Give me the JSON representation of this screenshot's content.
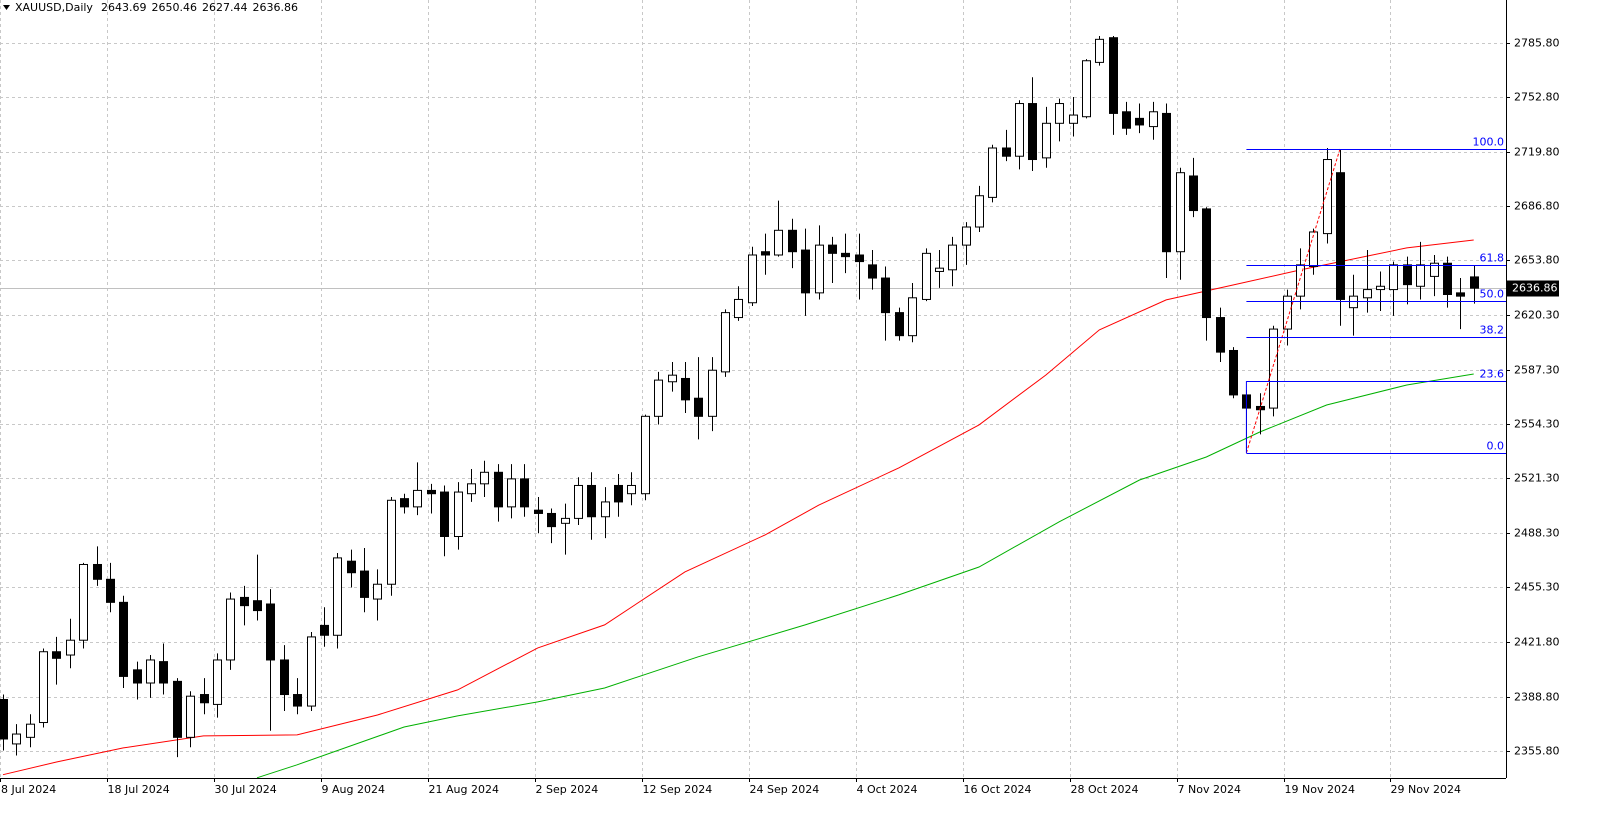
{
  "chart_data": {
    "type": "candlestick",
    "title": "XAUUSD,Daily",
    "categories": [
      "8 Jul 2024",
      null,
      null,
      null,
      null,
      null,
      null,
      null,
      "18 Jul 2024",
      null,
      null,
      null,
      null,
      null,
      null,
      null,
      "30 Jul 2024",
      null,
      null,
      null,
      null,
      null,
      null,
      null,
      "9 Aug 2024",
      null,
      null,
      null,
      null,
      null,
      null,
      null,
      "21 Aug 2024",
      null,
      null,
      null,
      null,
      null,
      null,
      null,
      "2 Sep 2024",
      null,
      null,
      null,
      null,
      null,
      null,
      null,
      "12 Sep 2024",
      null,
      null,
      null,
      null,
      null,
      null,
      null,
      "24 Sep 2024",
      null,
      null,
      null,
      null,
      null,
      null,
      null,
      "4 Oct 2024",
      null,
      null,
      null,
      null,
      null,
      null,
      null,
      "16 Oct 2024",
      null,
      null,
      null,
      null,
      null,
      null,
      null,
      "28 Oct 2024",
      null,
      null,
      null,
      null,
      null,
      null,
      null,
      "7 Nov 2024",
      null,
      null,
      null,
      null,
      null,
      null,
      null,
      "19 Nov 2024",
      null,
      null,
      null,
      null,
      null,
      null,
      null,
      "29 Nov 2024",
      null,
      null,
      null,
      null,
      null,
      null
    ],
    "open": [
      2387,
      2360,
      2364,
      2373,
      2416,
      2414,
      2423,
      2469,
      2460,
      2446,
      2405,
      2397,
      2410,
      2398,
      2364,
      2390,
      2384,
      2411,
      2449,
      2447,
      2445,
      2411,
      2390,
      2383,
      2432,
      2426,
      2471,
      2465,
      2448,
      2457,
      2509,
      2504,
      2514,
      2513,
      2486,
      2512,
      2518,
      2525,
      2504,
      2521,
      2502,
      2500,
      2494,
      2497,
      2517,
      2498,
      2517,
      2512,
      2512,
      2559,
      2580,
      2582,
      2570,
      2559,
      2586,
      2619,
      2628,
      2659,
      2657,
      2672,
      2660,
      2634,
      2663,
      2658,
      2657,
      2651,
      2643,
      2622,
      2608,
      2630,
      2647,
      2648,
      2663,
      2674,
      2692,
      2722,
      2717,
      2749,
      2716,
      2737,
      2737,
      2741,
      2774,
      2789,
      2744,
      2740,
      2735,
      2743,
      2659,
      2705,
      2685,
      2619,
      2599,
      2572,
      2565,
      2564,
      2612,
      2632,
      2650,
      2670,
      2707,
      2625,
      2631,
      2636,
      2636,
      2651,
      2638,
      2644,
      2652,
      2634,
      2643.69
    ],
    "high": [
      2390,
      2372,
      2378,
      2418,
      2425,
      2436,
      2470,
      2480,
      2470,
      2450,
      2410,
      2414,
      2421,
      2400,
      2392,
      2400,
      2415,
      2452,
      2456,
      2475,
      2454,
      2420,
      2400,
      2428,
      2443,
      2476,
      2478,
      2479,
      2466,
      2510,
      2512,
      2531,
      2518,
      2517,
      2519,
      2527,
      2532,
      2530,
      2530,
      2530,
      2510,
      2503,
      2506,
      2522,
      2525,
      2516,
      2524,
      2525,
      2560,
      2586,
      2592,
      2592,
      2595,
      2595,
      2624,
      2638,
      2662,
      2670,
      2690,
      2679,
      2673,
      2675,
      2668,
      2670,
      2670,
      2660,
      2650,
      2625,
      2640,
      2661,
      2660,
      2668,
      2677,
      2699,
      2724,
      2733,
      2751,
      2765,
      2747,
      2752,
      2753,
      2776,
      2790,
      2790,
      2750,
      2749,
      2750,
      2749,
      2710,
      2716,
      2686,
      2625,
      2601,
      2575,
      2573,
      2614,
      2636,
      2661,
      2673,
      2722,
      2721,
      2645,
      2660,
      2647,
      2653,
      2656,
      2665,
      2657,
      2656,
      2643,
      2650.46
    ],
    "low": [
      2356,
      2353,
      2358,
      2370,
      2396,
      2406,
      2418,
      2456,
      2440,
      2394,
      2387,
      2388,
      2390,
      2352,
      2358,
      2378,
      2376,
      2405,
      2432,
      2435,
      2368,
      2380,
      2378,
      2380,
      2419,
      2418,
      2455,
      2440,
      2435,
      2450,
      2500,
      2499,
      2500,
      2474,
      2478,
      2507,
      2510,
      2495,
      2497,
      2498,
      2488,
      2482,
      2475,
      2493,
      2484,
      2485,
      2498,
      2505,
      2508,
      2554,
      2574,
      2561,
      2545,
      2550,
      2583,
      2617,
      2626,
      2645,
      2656,
      2649,
      2620,
      2630,
      2640,
      2646,
      2630,
      2636,
      2605,
      2605,
      2604,
      2629,
      2637,
      2638,
      2651,
      2671,
      2689,
      2714,
      2709,
      2708,
      2710,
      2726,
      2729,
      2740,
      2772,
      2730,
      2730,
      2731,
      2727,
      2643,
      2642,
      2680,
      2605,
      2592,
      2570,
      2537,
      2548,
      2559,
      2602,
      2624,
      2645,
      2664,
      2614,
      2608,
      2622,
      2623,
      2620,
      2627,
      2630,
      2632,
      2625,
      2612,
      2627.44
    ],
    "close": [
      2363,
      2366,
      2372,
      2416,
      2412,
      2423,
      2469,
      2460,
      2446,
      2401,
      2397,
      2411,
      2397,
      2364,
      2389,
      2385,
      2411,
      2448,
      2444,
      2441,
      2411,
      2390,
      2383,
      2425,
      2426,
      2473,
      2464,
      2449,
      2457,
      2508,
      2504,
      2514,
      2512,
      2486,
      2513,
      2518,
      2525,
      2504,
      2521,
      2504,
      2500,
      2492,
      2497,
      2517,
      2498,
      2507,
      2507,
      2517,
      2559,
      2581,
      2584,
      2569,
      2559,
      2587,
      2622,
      2630,
      2657,
      2657,
      2672,
      2659,
      2634,
      2663,
      2658,
      2656,
      2653,
      2643,
      2622,
      2608,
      2631,
      2658,
      2649,
      2663,
      2674,
      2693,
      2722,
      2717,
      2749,
      2715,
      2737,
      2749,
      2742,
      2775,
      2788,
      2743,
      2734,
      2736,
      2744,
      2659,
      2707,
      2684,
      2619,
      2598,
      2572,
      2564,
      2563,
      2612,
      2632,
      2651,
      2671,
      2715,
      2630,
      2632,
      2636,
      2638,
      2651,
      2639,
      2651,
      2652,
      2633,
      2632,
      2636.86
    ],
    "up_color": "#ffffff",
    "down_color": "#000000",
    "moving_averages": [
      {
        "color": "#ff0000",
        "x": [
          0,
          4,
          9,
          15,
          22,
          28,
          34,
          40,
          45,
          51,
          57,
          61,
          67,
          73,
          78,
          82,
          87,
          92,
          97,
          105,
          110
        ],
        "values": [
          2341.3,
          2349,
          2357.6,
          2364.9,
          2365.5,
          2377.6,
          2392.8,
          2418.3,
          2432.3,
          2464.5,
          2487,
          2505,
          2527.7,
          2553.8,
          2584.1,
          2611.5,
          2629.7,
          2638.8,
          2647.9,
          2661.3,
          2666.1
        ]
      },
      {
        "color": "#00b000",
        "x": [
          19,
          22,
          30,
          34,
          40,
          45,
          52,
          60,
          67,
          73,
          79,
          85,
          90,
          94,
          99,
          105,
          110
        ],
        "values": [
          2339.4,
          2347.3,
          2370.3,
          2377,
          2385.5,
          2394,
          2412.9,
          2432.3,
          2450.5,
          2467.5,
          2494.9,
          2520.3,
          2534.3,
          2549.5,
          2565.9,
          2578,
          2584.7
        ]
      }
    ],
    "fibonacci": {
      "start": 93,
      "end": 100,
      "low": 2536.8,
      "high": 2721.4,
      "color": "#0000ff",
      "levels": [
        {
          "value": 100,
          "label": "100.0"
        },
        {
          "value": 61.8,
          "label": "61.8"
        },
        {
          "value": 50,
          "label": "50.0"
        },
        {
          "value": 38.2,
          "label": "38.2"
        },
        {
          "value": 23.6,
          "label": "23.6"
        },
        {
          "value": 0,
          "label": "0.0"
        }
      ]
    },
    "ylim": [
      2339.3,
      2811.9
    ],
    "yticks": [
      {
        "value": 2785.8,
        "label": "2785.80"
      },
      {
        "value": 2752.8,
        "label": "2752.80"
      },
      {
        "value": 2719.8,
        "label": "2719.80"
      },
      {
        "value": 2686.8,
        "label": "2686.80"
      },
      {
        "value": 2653.8,
        "label": "2653.80"
      },
      {
        "value": 2620.3,
        "label": "2620.30"
      },
      {
        "value": 2587.3,
        "label": "2587.30"
      },
      {
        "value": 2554.3,
        "label": "2554.30"
      },
      {
        "value": 2521.3,
        "label": "2521.30"
      },
      {
        "value": 2488.3,
        "label": "2488.30"
      },
      {
        "value": 2455.3,
        "label": "2455.30"
      },
      {
        "value": 2421.8,
        "label": "2421.80"
      },
      {
        "value": 2388.8,
        "label": "2388.80"
      },
      {
        "value": 2355.8,
        "label": "2355.80"
      }
    ],
    "grid": true
  }
}
